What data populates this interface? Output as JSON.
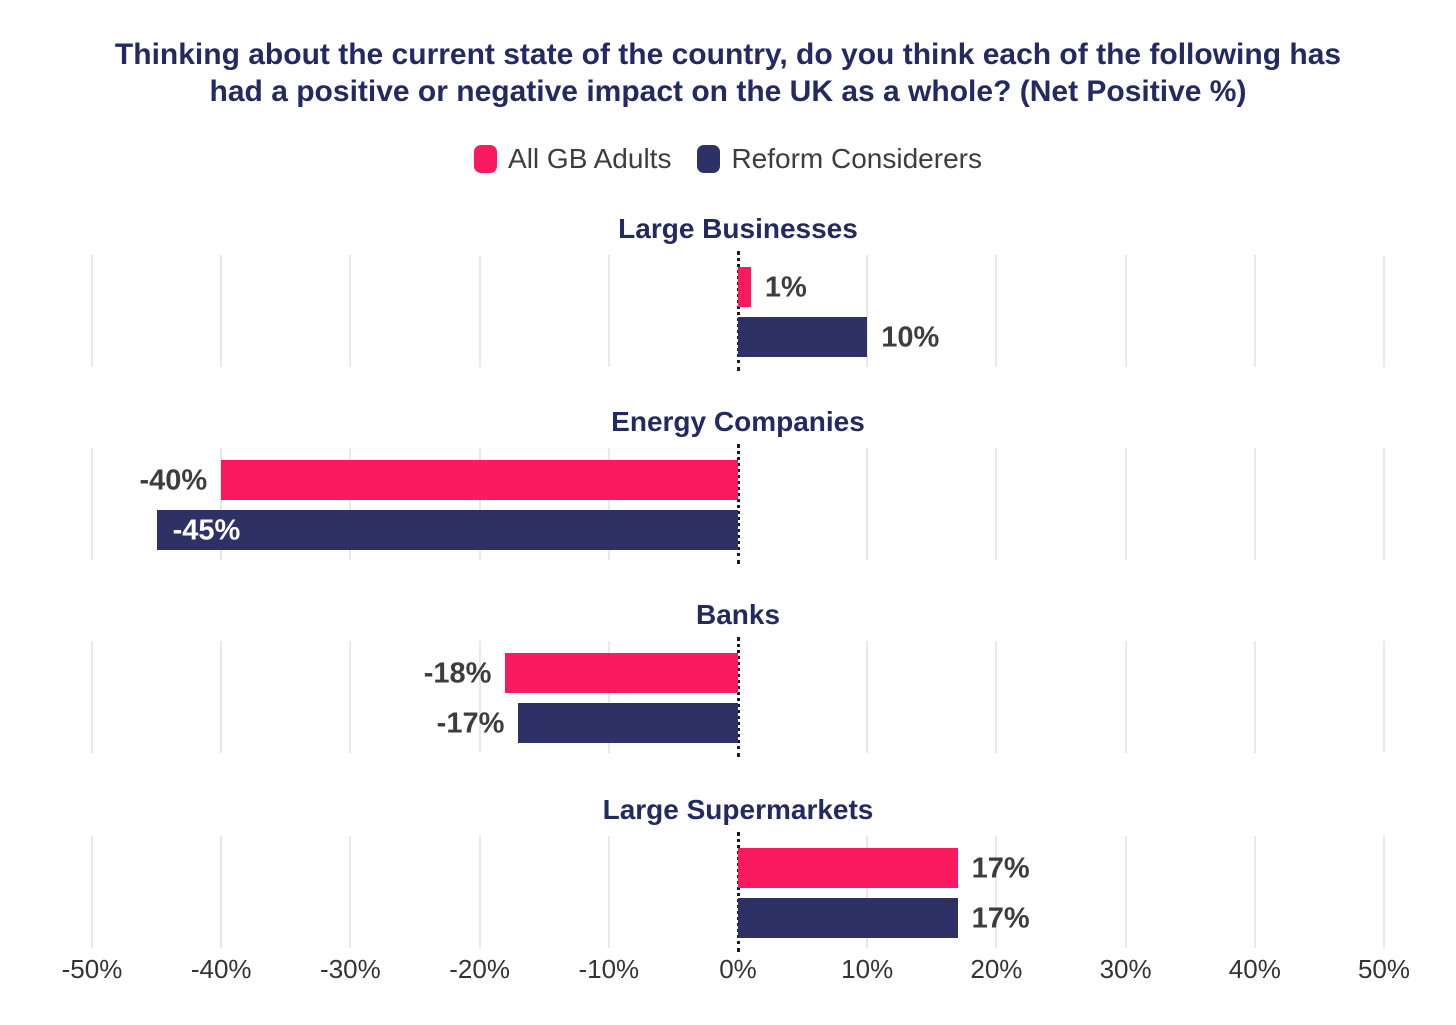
{
  "title": {
    "line1": "Thinking about the current state of the country, do you think each of the following has",
    "line2": "had a positive or negative impact on the UK as a whole? (Net Positive %)"
  },
  "legend": {
    "items": [
      {
        "label": "All GB Adults",
        "color": "#FA1A5F"
      },
      {
        "label": "Reform Considerers",
        "color": "#2D3166"
      }
    ]
  },
  "colors": {
    "pink": "#FA1A5F",
    "navy": "#2D3166",
    "title_navy": "#232A62",
    "value_label": "#3D3D3D",
    "inside_label": "#FFFFFF",
    "gridline": "#E9E9E9",
    "zero_line": "#1A1A1A",
    "axis_label": "#333333"
  },
  "chart_data": {
    "type": "bar",
    "orientation": "horizontal",
    "title": "Thinking about the current state of the country, do you think each of the following has had a positive or negative impact on the UK as a whole? (Net Positive %)",
    "categories": [
      "Large Businesses",
      "Energy Companies",
      "Banks",
      "Large Supermarkets"
    ],
    "series": [
      {
        "name": "All GB Adults",
        "color": "#FA1A5F",
        "values": [
          1,
          -40,
          -18,
          17
        ]
      },
      {
        "name": "Reform Considerers",
        "color": "#2D3166",
        "values": [
          10,
          -45,
          -17,
          17
        ]
      }
    ],
    "data_labels": [
      [
        "1%",
        "10%"
      ],
      [
        "-40%",
        "-45%"
      ],
      [
        "-18%",
        "-17%"
      ],
      [
        "17%",
        "17%"
      ]
    ],
    "inside_labels": [
      [
        false,
        false
      ],
      [
        false,
        true
      ],
      [
        false,
        false
      ],
      [
        false,
        false
      ]
    ],
    "xlim": [
      -50,
      50
    ],
    "x_tick_values": [
      -50,
      -40,
      -30,
      -20,
      -10,
      0,
      10,
      20,
      30,
      40,
      50
    ],
    "x_tick_labels": [
      "-50%",
      "-40%",
      "-30%",
      "-20%",
      "-10%",
      "0%",
      "10%",
      "20%",
      "30%",
      "40%",
      "50%"
    ],
    "grid": true,
    "zero_line": "dotted",
    "legend_position": "top"
  }
}
